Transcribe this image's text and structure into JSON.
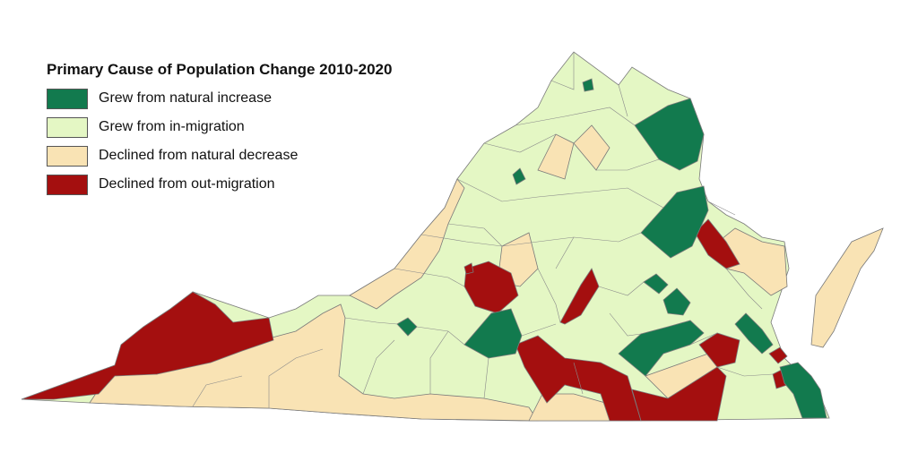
{
  "legend": {
    "title": "Primary Cause of Population Change 2010-2020",
    "items": [
      {
        "key": "natural_increase",
        "label": "Grew from natural increase",
        "color": "#127a4e"
      },
      {
        "key": "in_migration",
        "label": "Grew from in-migration",
        "color": "#e4f7c4"
      },
      {
        "key": "natural_decrease",
        "label": "Declined from natural decrease",
        "color": "#f9e3b4"
      },
      {
        "key": "out_migration",
        "label": "Declined from out-migration",
        "color": "#a40f0f"
      }
    ]
  }
}
